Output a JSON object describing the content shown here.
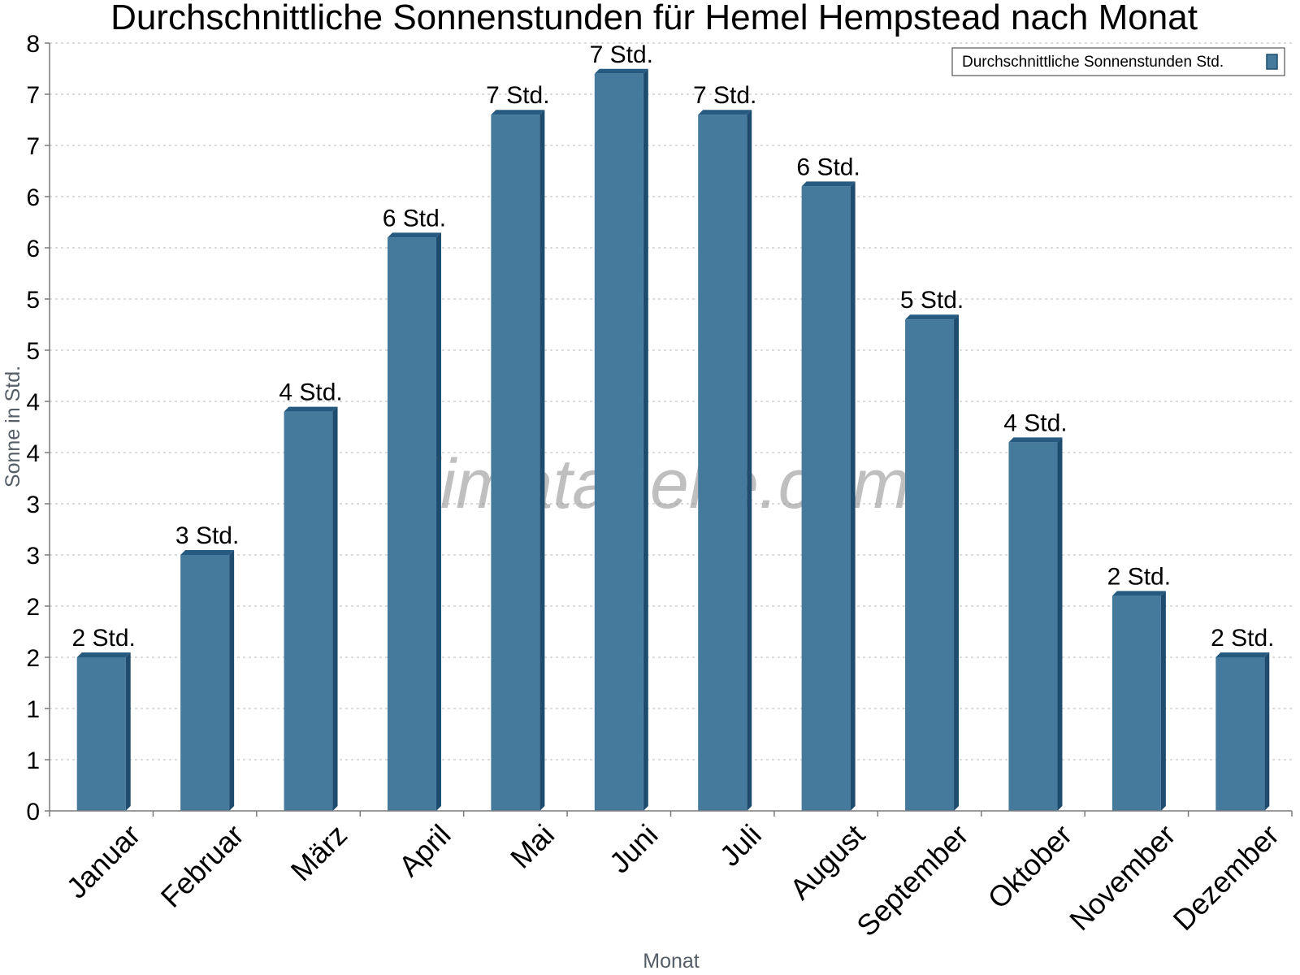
{
  "chart_data": {
    "type": "bar",
    "title": "Durchschnittliche Sonnenstunden für Hemel Hempstead nach Monat",
    "xlabel": "Monat",
    "ylabel": "Sonne in Std.",
    "ylim": [
      0,
      7.5
    ],
    "y_ticks": [
      0,
      0.5,
      1,
      1.5,
      2,
      2.5,
      3,
      3.5,
      4,
      4.5,
      5,
      5.5,
      6,
      6.5,
      7,
      7.5
    ],
    "y_tick_labels": [
      "0",
      "1",
      "1",
      "2",
      "2",
      "3",
      "3",
      "4",
      "4",
      "5",
      "5",
      "6",
      "6",
      "7",
      "7",
      "8"
    ],
    "categories": [
      "Januar",
      "Februar",
      "März",
      "April",
      "Mai",
      "Juni",
      "Juli",
      "August",
      "September",
      "Oktober",
      "November",
      "Dezember"
    ],
    "series": [
      {
        "name": "Durchschnittliche Sonnenstunden Std.",
        "values": [
          1.5,
          2.5,
          3.9,
          5.6,
          6.8,
          7.2,
          6.8,
          6.1,
          4.8,
          3.6,
          2.1,
          1.5
        ],
        "data_labels": [
          "2 Std.",
          "3 Std.",
          "4 Std.",
          "6 Std.",
          "7 Std.",
          "7 Std.",
          "7 Std.",
          "6 Std.",
          "5 Std.",
          "4 Std.",
          "2 Std.",
          "2 Std."
        ]
      }
    ],
    "colors": {
      "bar": "#467a9c",
      "bar_side": "#1e4c6e",
      "bar_top": "#275a80"
    },
    "grid": true,
    "legend_position": "top-right",
    "watermark": "klimatabelle.com"
  }
}
